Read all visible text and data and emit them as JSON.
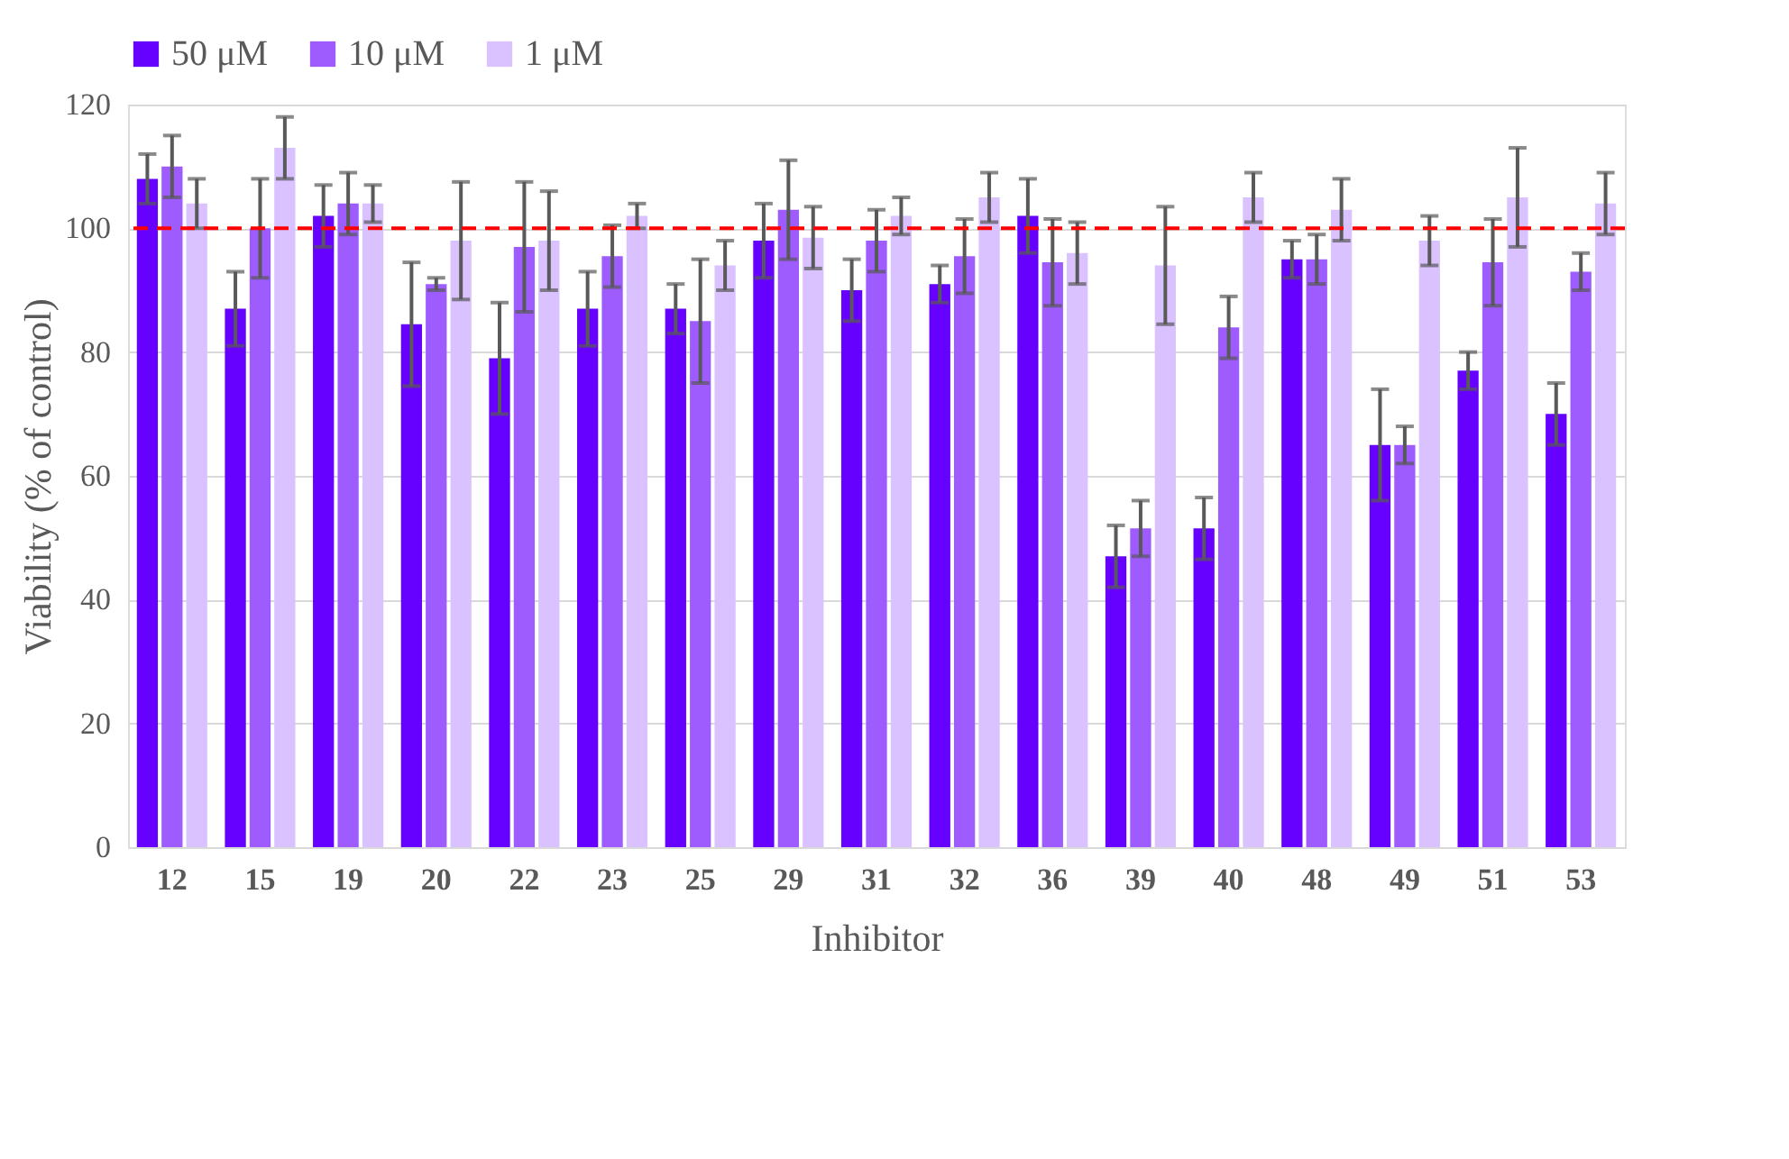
{
  "chart_data": {
    "type": "bar",
    "xlabel": "Inhibitor",
    "ylabel": "Viability (% of control)",
    "categories": [
      "12",
      "15",
      "19",
      "20",
      "22",
      "23",
      "25",
      "29",
      "31",
      "32",
      "36",
      "39",
      "40",
      "48",
      "49",
      "51",
      "53"
    ],
    "series": [
      {
        "name": "50 μM",
        "color": "#6600ff",
        "values": [
          108,
          87,
          102,
          84.5,
          79,
          87,
          87,
          98,
          90,
          91,
          102,
          47,
          51.5,
          95,
          65,
          77,
          70
        ],
        "errors": [
          4,
          6,
          5,
          10,
          9,
          6,
          4,
          6,
          5,
          3,
          6,
          5,
          5,
          3,
          9,
          3,
          5
        ]
      },
      {
        "name": "10 μM",
        "color": "#9e5cff",
        "values": [
          110,
          100,
          104,
          91,
          97,
          95.5,
          85,
          103,
          98,
          95.5,
          94.5,
          51.5,
          84,
          95,
          65,
          94.5,
          93
        ],
        "errors": [
          5,
          8,
          5,
          1,
          10.5,
          5,
          10,
          8,
          5,
          6,
          7,
          4.5,
          5,
          4,
          3,
          7,
          3
        ]
      },
      {
        "name": "1 μM",
        "color": "#d9c2ff",
        "values": [
          104,
          113,
          104,
          98,
          98,
          102,
          94,
          98.5,
          102,
          105,
          96,
          94,
          105,
          103,
          98,
          105,
          104
        ],
        "errors": [
          4,
          5,
          3,
          9.5,
          8,
          2,
          4,
          5,
          3,
          4,
          5,
          9.5,
          4,
          5,
          4,
          8,
          5
        ]
      }
    ],
    "ylim": [
      0,
      120
    ],
    "yticks": [
      0,
      20,
      40,
      60,
      80,
      100,
      120
    ],
    "grid": "y",
    "legend": "top",
    "ref_lines": [
      {
        "axis": "y",
        "value": 100,
        "color": "#ff0000",
        "line_style": "dashed"
      }
    ]
  }
}
